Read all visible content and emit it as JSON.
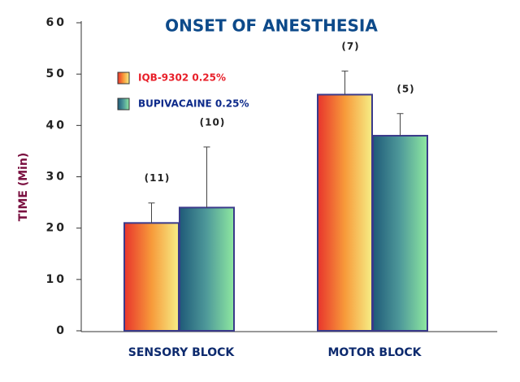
{
  "chart_data": {
    "type": "bar",
    "title": "ONSET OF ANESTHESIA",
    "y_label": "TIME (Min)",
    "categories": [
      "SENSORY BLOCK",
      "MOTOR BLOCK"
    ],
    "series": [
      {
        "name": "IQB-9302 0.25%",
        "colors": [
          "#e8342c",
          "#f79a3a",
          "#f6ee86"
        ],
        "values": [
          21,
          46
        ],
        "errors": [
          3.9,
          4.6
        ],
        "n_labels": [
          "(11)",
          "(7)"
        ]
      },
      {
        "name": "BUPIVACAINE 0.25%",
        "colors": [
          "#1f5a78",
          "#4f9a9a",
          "#8ee8a0"
        ],
        "values": [
          24,
          38
        ],
        "errors": [
          11.8,
          4.3
        ],
        "n_labels": [
          "(10)",
          "(5)"
        ]
      }
    ],
    "ylim": [
      0,
      60
    ],
    "yticks": [
      0,
      10,
      20,
      30,
      40,
      50,
      60
    ]
  }
}
